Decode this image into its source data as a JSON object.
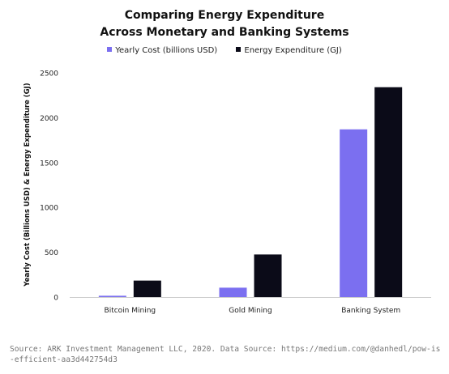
{
  "chart_data": {
    "type": "bar",
    "title_lines": [
      "Comparing Energy Expenditure",
      "Across Monetary and Banking Systems"
    ],
    "categories": [
      "Bitcoin Mining",
      "Gold Mining",
      "Banking System"
    ],
    "series": [
      {
        "name": "Yearly Cost (billions USD)",
        "color": "#7b6ff0",
        "values": [
          15,
          105,
          1870
        ]
      },
      {
        "name": "Energy Expenditure (GJ)",
        "color": "#0b0b18",
        "values": [
          184,
          475,
          2340
        ]
      }
    ],
    "ylabel": "Yearly Cost (Billions USD) & Energy Expenditure (GJ)",
    "xlabel": "",
    "ylim": [
      0,
      2500
    ],
    "yticks": [
      0,
      500,
      1000,
      1500,
      2000,
      2500
    ],
    "grid": false,
    "legend_position": "top-center"
  },
  "source": "Source: ARK Investment Management LLC, 2020. Data Source: https://medium.com/@danhedl/pow-is-efficient-aa3d442754d3"
}
